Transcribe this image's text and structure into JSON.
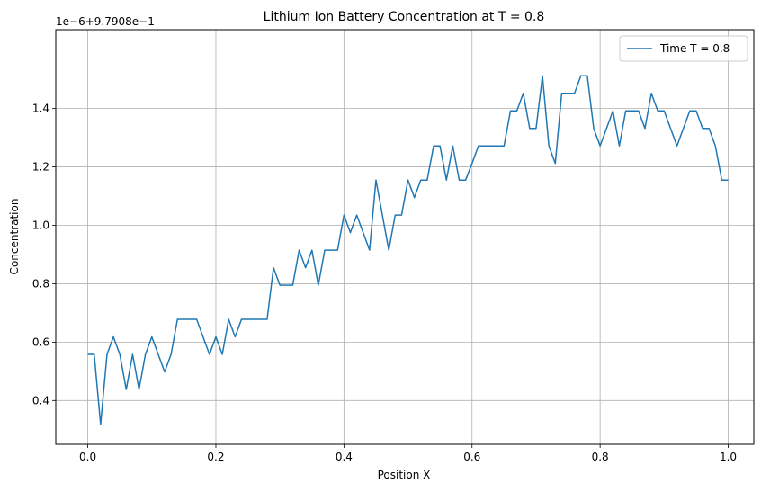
{
  "chart_data": {
    "type": "line",
    "title": "Lithium Ion Battery Concentration at T = 0.8",
    "xlabel": "Position X",
    "ylabel": "Concentration",
    "y_offset_label": "1e−6+9.7908e−1",
    "xlim": [
      -0.05,
      1.04
    ],
    "ylim": [
      0.25,
      1.67
    ],
    "x_ticks": [
      0.0,
      0.2,
      0.4,
      0.6,
      0.8,
      1.0
    ],
    "x_tick_labels": [
      "0.0",
      "0.2",
      "0.4",
      "0.6",
      "0.8",
      "1.0"
    ],
    "y_ticks": [
      0.4,
      0.6,
      0.8,
      1.0,
      1.2,
      1.4
    ],
    "y_tick_labels": [
      "0.4",
      "0.6",
      "0.8",
      "1.0",
      "1.2",
      "1.4"
    ],
    "grid": true,
    "legend_position": "top-right",
    "series": [
      {
        "name": "Time T = 0.8",
        "color": "#1f77b4",
        "x": [
          0.0,
          0.01,
          0.02,
          0.03,
          0.04,
          0.05,
          0.06,
          0.07,
          0.08,
          0.09,
          0.1,
          0.11,
          0.12,
          0.13,
          0.14,
          0.15,
          0.16,
          0.17,
          0.18,
          0.19,
          0.2,
          0.21,
          0.22,
          0.23,
          0.24,
          0.25,
          0.26,
          0.27,
          0.28,
          0.29,
          0.3,
          0.31,
          0.32,
          0.33,
          0.34,
          0.35,
          0.36,
          0.37,
          0.38,
          0.39,
          0.4,
          0.41,
          0.42,
          0.43,
          0.44,
          0.45,
          0.46,
          0.47,
          0.48,
          0.49,
          0.5,
          0.51,
          0.52,
          0.53,
          0.54,
          0.55,
          0.56,
          0.57,
          0.58,
          0.59,
          0.6,
          0.61,
          0.62,
          0.63,
          0.64,
          0.65,
          0.66,
          0.67,
          0.68,
          0.69,
          0.7,
          0.71,
          0.72,
          0.73,
          0.74,
          0.75,
          0.76,
          0.77,
          0.78,
          0.79,
          0.8,
          0.81,
          0.82,
          0.83,
          0.84,
          0.85,
          0.86,
          0.87,
          0.88,
          0.89,
          0.9,
          0.91,
          0.92,
          0.93,
          0.94,
          0.95,
          0.96,
          0.97,
          0.98,
          0.99,
          1.0
        ],
        "y": [
          0.558,
          0.558,
          0.318,
          0.558,
          0.618,
          0.558,
          0.438,
          0.558,
          0.438,
          0.558,
          0.618,
          0.558,
          0.498,
          0.558,
          0.678,
          0.678,
          0.678,
          0.678,
          0.618,
          0.558,
          0.618,
          0.558,
          0.678,
          0.618,
          0.678,
          0.678,
          0.678,
          0.678,
          0.678,
          0.855,
          0.795,
          0.795,
          0.795,
          0.915,
          0.855,
          0.915,
          0.795,
          0.915,
          0.915,
          0.915,
          1.035,
          0.975,
          1.035,
          0.975,
          0.915,
          1.155,
          1.035,
          0.915,
          1.035,
          1.035,
          1.155,
          1.095,
          1.155,
          1.155,
          1.272,
          1.272,
          1.155,
          1.272,
          1.155,
          1.155,
          1.212,
          1.272,
          1.272,
          1.272,
          1.272,
          1.272,
          1.392,
          1.392,
          1.452,
          1.332,
          1.332,
          1.512,
          1.272,
          1.212,
          1.452,
          1.452,
          1.452,
          1.512,
          1.512,
          1.332,
          1.272,
          1.332,
          1.392,
          1.272,
          1.392,
          1.392,
          1.392,
          1.332,
          1.452,
          1.392,
          1.392,
          1.332,
          1.272,
          1.332,
          1.392,
          1.392,
          1.332,
          1.332,
          1.272,
          1.155,
          1.155
        ]
      }
    ]
  }
}
